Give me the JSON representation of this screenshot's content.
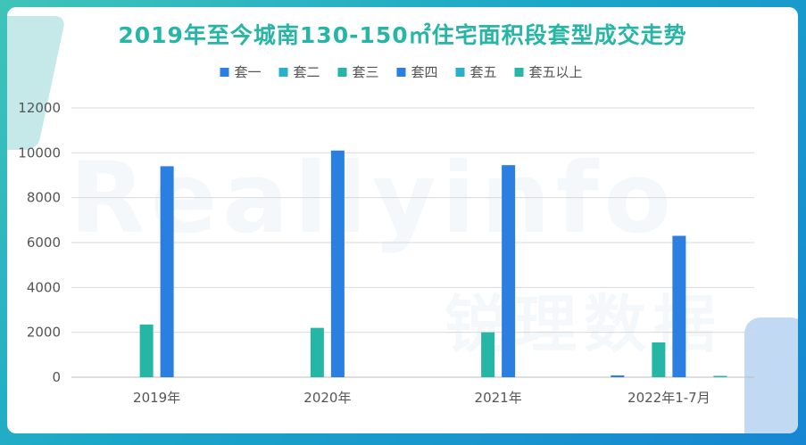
{
  "chart_data": {
    "type": "bar",
    "title": "2019年至今城南130-150㎡住宅面积段套型成交走势",
    "categories": [
      "2019年",
      "2020年",
      "2021年",
      "2022年1-7月"
    ],
    "series": [
      {
        "name": "套一",
        "color": "#2a7fe0",
        "values": [
          0,
          0,
          0,
          80
        ]
      },
      {
        "name": "套二",
        "color": "#2ab0c8",
        "values": [
          0,
          0,
          0,
          0
        ]
      },
      {
        "name": "套三",
        "color": "#26b6a6",
        "values": [
          2350,
          2200,
          2000,
          1550
        ]
      },
      {
        "name": "套四",
        "color": "#2a7fe0",
        "values": [
          9400,
          10100,
          9450,
          6300
        ]
      },
      {
        "name": "套五",
        "color": "#2ab0c8",
        "values": [
          0,
          0,
          0,
          0
        ]
      },
      {
        "name": "套五以上",
        "color": "#26b6a6",
        "values": [
          0,
          0,
          0,
          60
        ]
      }
    ],
    "yticks": [
      0,
      2000,
      4000,
      6000,
      8000,
      10000,
      12000
    ],
    "ylim": [
      0,
      12000
    ],
    "grid": true,
    "legend_position": "top-center"
  },
  "watermark": {
    "latin": "Reallyinfo",
    "cn": "锐理数据"
  }
}
